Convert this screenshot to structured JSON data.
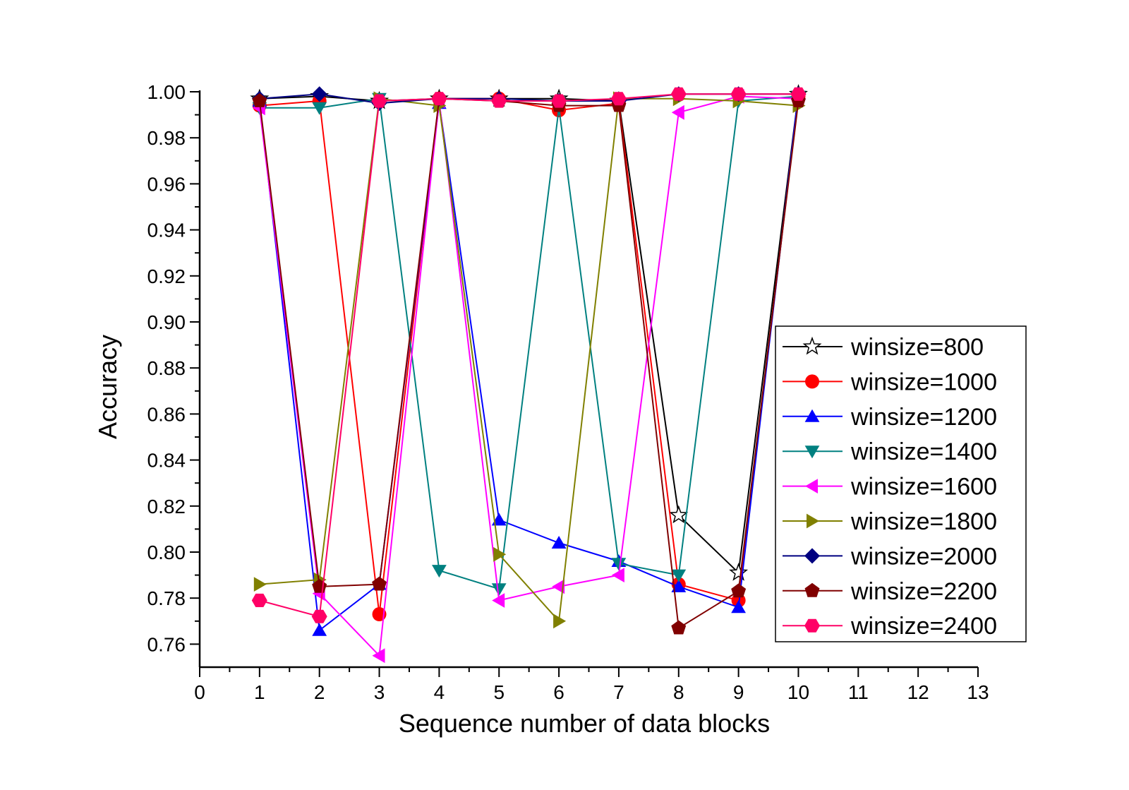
{
  "chart_data": {
    "type": "line",
    "title": "",
    "xlabel": "Sequence number of data blocks",
    "ylabel": "Accuracy",
    "xlim": [
      0,
      13
    ],
    "ylim": [
      0.75,
      1.0
    ],
    "x_ticks": [
      "0",
      "1",
      "2",
      "3",
      "4",
      "5",
      "6",
      "7",
      "8",
      "9",
      "10",
      "11",
      "12",
      "13"
    ],
    "y_ticks": [
      "0.76",
      "0.78",
      "0.80",
      "0.82",
      "0.84",
      "0.86",
      "0.88",
      "0.90",
      "0.92",
      "0.94",
      "0.96",
      "0.98",
      "1.00"
    ],
    "grid": false,
    "legend_position": "right",
    "x": [
      1,
      2,
      3,
      4,
      5,
      6,
      7,
      8,
      9,
      10
    ],
    "series": [
      {
        "name": "winsize=800",
        "color": "#000000",
        "marker": "star",
        "values": [
          0.997,
          0.998,
          0.996,
          0.997,
          0.997,
          0.997,
          0.996,
          0.816,
          0.791,
          0.999
        ]
      },
      {
        "name": "winsize=1000",
        "color": "#ff0000",
        "marker": "circle",
        "values": [
          0.994,
          0.996,
          0.773,
          0.997,
          0.997,
          0.992,
          0.995,
          0.786,
          0.779,
          0.998
        ]
      },
      {
        "name": "winsize=1200",
        "color": "#0000ff",
        "marker": "triangle-up",
        "values": [
          0.996,
          0.766,
          0.786,
          0.995,
          0.814,
          0.804,
          0.796,
          0.785,
          0.776,
          0.999
        ]
      },
      {
        "name": "winsize=1400",
        "color": "#008080",
        "marker": "triangle-down",
        "values": [
          0.993,
          0.993,
          0.997,
          0.792,
          0.784,
          0.993,
          0.795,
          0.79,
          0.996,
          0.998
        ]
      },
      {
        "name": "winsize=1600",
        "color": "#ff00ff",
        "marker": "triangle-left",
        "values": [
          0.993,
          0.782,
          0.755,
          0.996,
          0.779,
          0.785,
          0.79,
          0.991,
          0.998,
          0.997
        ]
      },
      {
        "name": "winsize=1800",
        "color": "#808000",
        "marker": "triangle-right",
        "values": [
          0.786,
          0.788,
          0.997,
          0.994,
          0.799,
          0.77,
          0.997,
          0.997,
          0.996,
          0.994
        ]
      },
      {
        "name": "winsize=2000",
        "color": "#000080",
        "marker": "diamond",
        "values": [
          0.997,
          0.999,
          0.995,
          0.997,
          0.997,
          0.996,
          0.996,
          0.999,
          0.999,
          0.999
        ]
      },
      {
        "name": "winsize=2200",
        "color": "#800000",
        "marker": "pentagon",
        "values": [
          0.996,
          0.785,
          0.786,
          0.997,
          0.996,
          0.994,
          0.994,
          0.767,
          0.783,
          0.996
        ]
      },
      {
        "name": "winsize=2400",
        "color": "#ff0066",
        "marker": "hexagon",
        "values": [
          0.779,
          0.772,
          0.996,
          0.997,
          0.996,
          0.996,
          0.997,
          0.999,
          0.999,
          0.999
        ]
      }
    ]
  }
}
